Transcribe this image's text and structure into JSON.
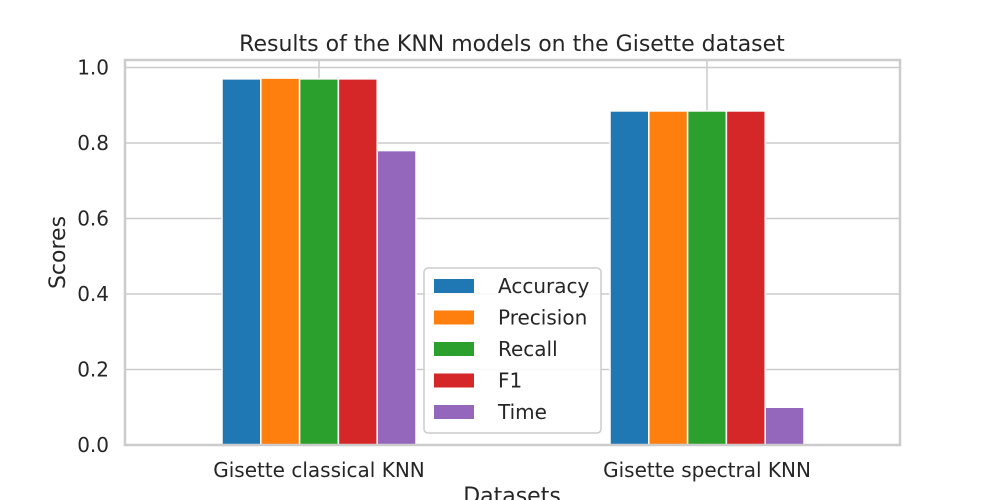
{
  "chart_data": {
    "type": "bar",
    "title": "Results of the KNN models on the Gisette dataset",
    "xlabel": "Datasets",
    "ylabel": "Scores",
    "categories": [
      "Gisette classical KNN",
      "Gisette spectral KNN"
    ],
    "ylim": [
      0,
      1.02
    ],
    "yticks": [
      "0.0",
      "0.2",
      "0.4",
      "0.6",
      "0.8",
      "1.0"
    ],
    "grid": true,
    "legend_position": "lower center",
    "series": [
      {
        "name": "Accuracy",
        "color": "#1f77b4",
        "values": [
          0.97,
          0.885
        ]
      },
      {
        "name": "Precision",
        "color": "#ff7f0e",
        "values": [
          0.972,
          0.885
        ]
      },
      {
        "name": "Recall",
        "color": "#2ca02c",
        "values": [
          0.97,
          0.885
        ]
      },
      {
        "name": "F1",
        "color": "#d62728",
        "values": [
          0.97,
          0.885
        ]
      },
      {
        "name": "Time",
        "color": "#9467bd",
        "values": [
          0.78,
          0.1
        ]
      }
    ]
  }
}
